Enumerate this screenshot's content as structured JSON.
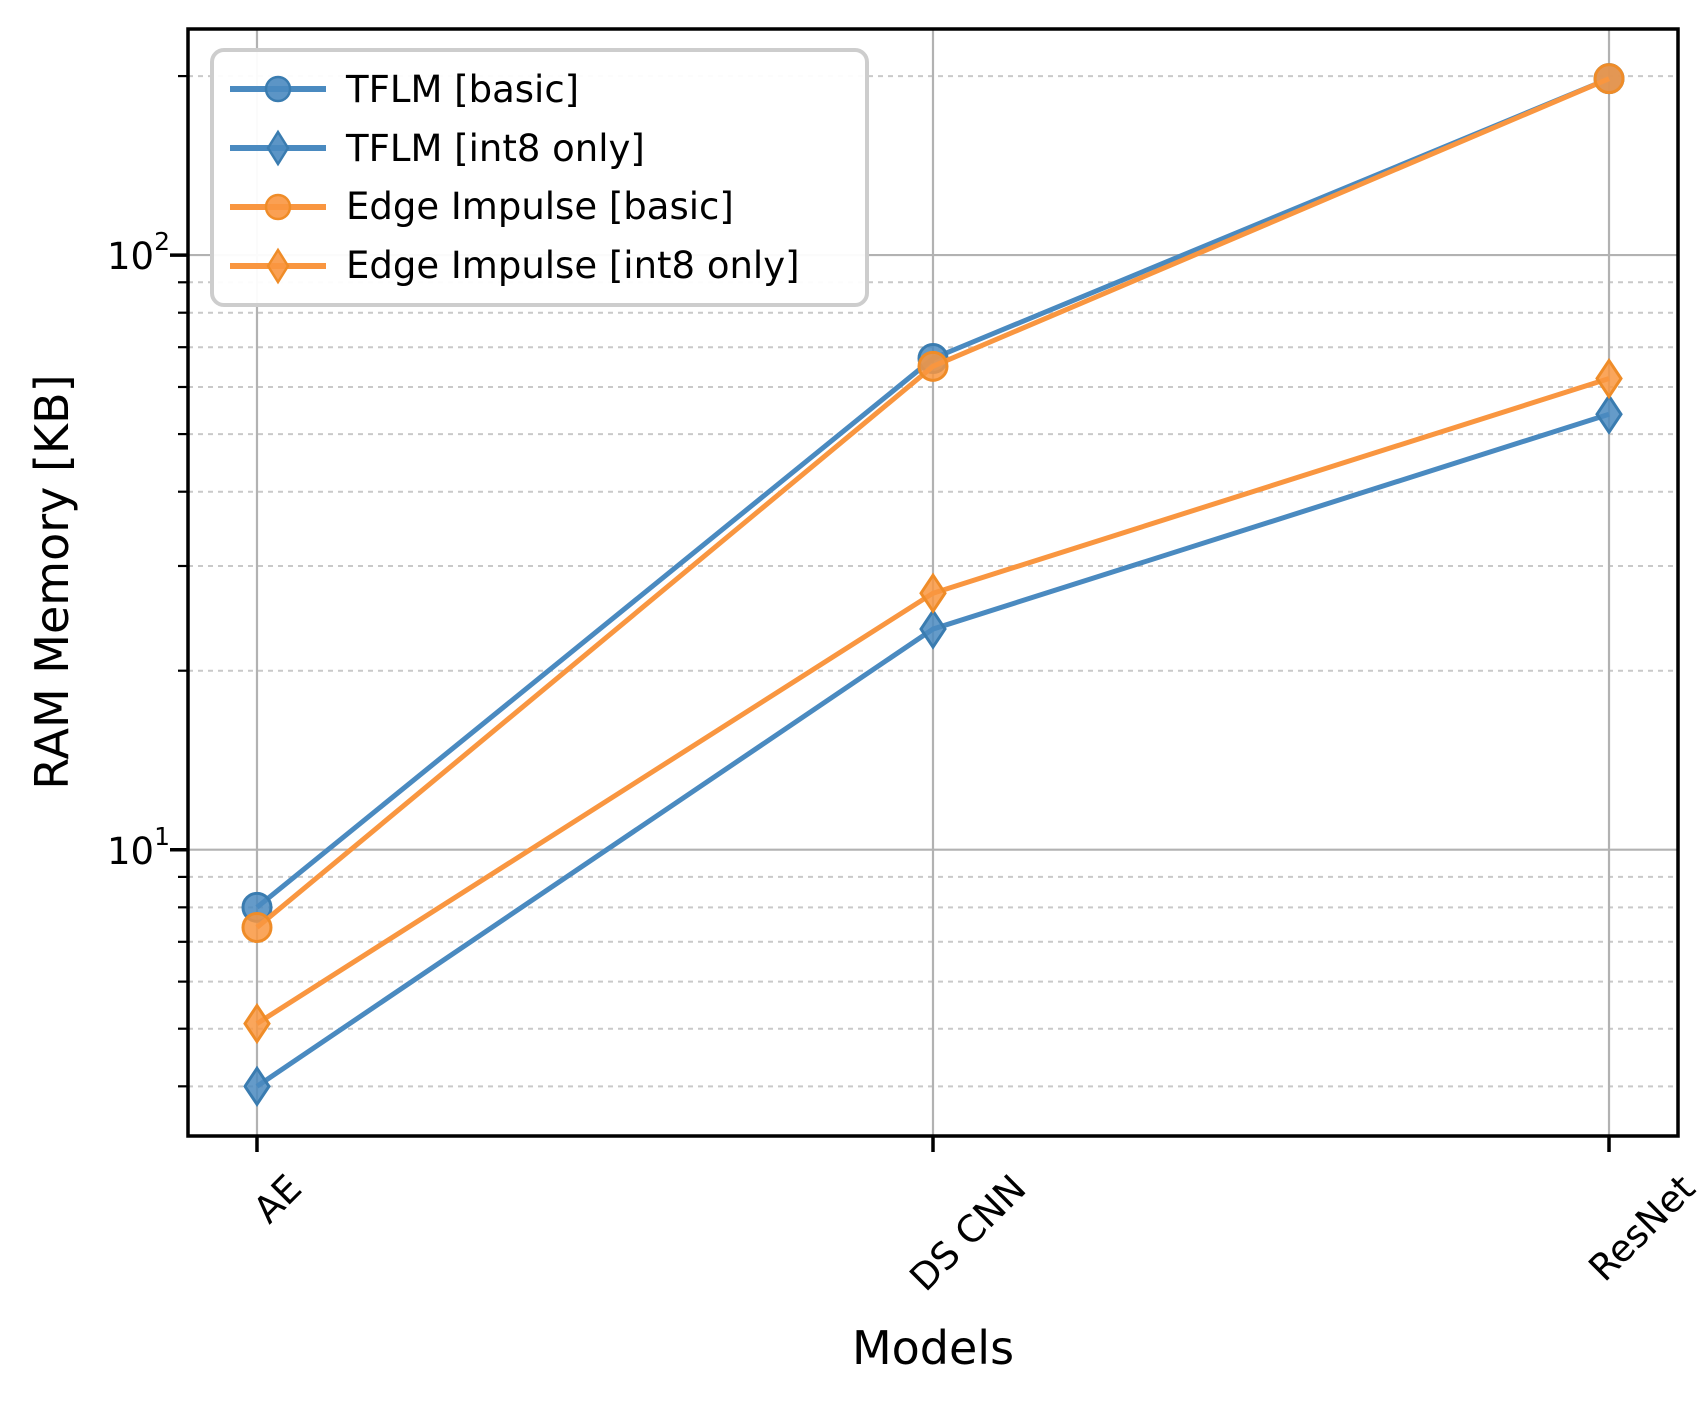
{
  "chart_data": {
    "type": "line",
    "title": "",
    "xlabel": "Models",
    "ylabel": "RAM Memory [KB]",
    "categories": [
      "AE",
      "DS CNN",
      "ResNet"
    ],
    "y_scale": "log",
    "ylim": [
      3.3,
      240
    ],
    "grid": true,
    "legend_position": "upper left",
    "y_ticks": [
      {
        "base": "10",
        "exp": "2",
        "value": 100
      },
      {
        "base": "10",
        "exp": "1",
        "value": 10
      }
    ],
    "series": [
      {
        "name": "TFLM [basic]",
        "marker": "circle",
        "color": "#4a8ac0",
        "edge_color": "#3a7cb0",
        "values": [
          8.0,
          67,
          198
        ]
      },
      {
        "name": "TFLM [int8 only]",
        "marker": "diamond",
        "color": "#4a8ac0",
        "edge_color": "#3a7cb0",
        "values": [
          4.0,
          23.5,
          54
        ]
      },
      {
        "name": "Edge Impulse [basic]",
        "marker": "circle",
        "color": "#f99640",
        "edge_color": "#ef8c28",
        "values": [
          7.4,
          65,
          198
        ]
      },
      {
        "name": "Edge Impulse [int8 only]",
        "marker": "diamond",
        "color": "#f99640",
        "edge_color": "#ef8c28",
        "values": [
          5.1,
          27,
          62
        ]
      }
    ],
    "colors": {
      "blue": "#4a8ac0",
      "orange": "#f99640",
      "grid_major": "#b2b2b2",
      "grid_minor": "#c9c9c9"
    }
  }
}
